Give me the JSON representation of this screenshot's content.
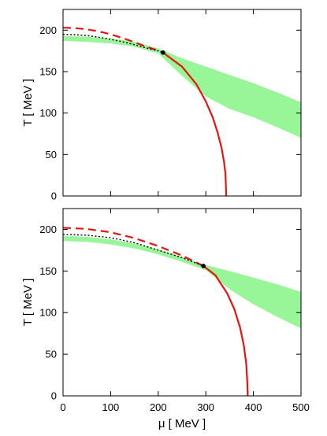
{
  "chart_data": [
    {
      "type": "line",
      "panel": "top",
      "title": "",
      "xlabel": "",
      "ylabel": "T  [ MeV ]",
      "xlim": [
        0,
        500
      ],
      "ylim": [
        0,
        225
      ],
      "xticks": [],
      "yticks": [
        "0",
        "50",
        "100",
        "150",
        "200"
      ],
      "grid": false,
      "legend": "none",
      "colors": {
        "curve": "#e8140f",
        "band": "#98f598",
        "dotted": "#000000",
        "point": "#000000"
      },
      "critical_point": {
        "x": 210,
        "y": 173
      },
      "series": [
        {
          "style": "dashed",
          "x": [
            0,
            25,
            50,
            75,
            100,
            125,
            150,
            175,
            200,
            210
          ],
          "y": [
            203,
            202.5,
            201,
            198.5,
            195,
            190.5,
            185.5,
            180,
            175.5,
            173
          ]
        },
        {
          "style": "solid",
          "x": [
            210,
            250,
            280,
            300,
            315,
            325,
            333,
            338,
            341,
            342,
            343
          ],
          "y": [
            173,
            156,
            135,
            114,
            94,
            76,
            58,
            42,
            28,
            15,
            0
          ]
        },
        {
          "style": "dotted",
          "x": [
            0,
            25,
            50,
            75,
            100,
            125,
            150,
            175,
            200,
            210
          ],
          "y": [
            195,
            194.5,
            193.5,
            191.5,
            189,
            186,
            182.5,
            178.5,
            175,
            173
          ]
        },
        {
          "style": "band",
          "x": [
            0,
            50,
            100,
            150,
            200,
            250,
            300,
            350,
            400,
            450,
            500
          ],
          "y_upper": [
            193,
            192,
            190,
            186,
            178,
            166,
            156,
            146,
            136,
            125,
            113
          ],
          "y_lower": [
            187,
            186,
            184,
            180,
            172,
            145,
            120,
            105,
            95,
            83,
            70
          ]
        }
      ]
    },
    {
      "type": "line",
      "panel": "bottom",
      "title": "",
      "xlabel": "μ  [ MeV ]",
      "ylabel": "T  [ MeV ]",
      "xlim": [
        0,
        500
      ],
      "ylim": [
        0,
        225
      ],
      "xticks": [
        "0",
        "100",
        "200",
        "300",
        "400",
        "500"
      ],
      "yticks": [
        "0",
        "50",
        "100",
        "150",
        "200"
      ],
      "grid": false,
      "legend": "none",
      "colors": {
        "curve": "#e8140f",
        "band": "#98f598",
        "dotted": "#000000",
        "point": "#000000"
      },
      "critical_point": {
        "x": 295,
        "y": 156
      },
      "series": [
        {
          "style": "dashed",
          "x": [
            0,
            50,
            100,
            150,
            200,
            250,
            295
          ],
          "y": [
            202,
            200.5,
            196.5,
            189.5,
            180,
            168.5,
            156
          ]
        },
        {
          "style": "solid",
          "x": [
            295,
            320,
            345,
            360,
            372,
            380,
            385,
            387,
            388
          ],
          "y": [
            156,
            145,
            123,
            104,
            82,
            60,
            38,
            18,
            0
          ]
        },
        {
          "style": "dotted",
          "x": [
            0,
            50,
            100,
            150,
            200,
            250,
            295
          ],
          "y": [
            194,
            193,
            190,
            184,
            175,
            166,
            156
          ]
        },
        {
          "style": "band",
          "x": [
            0,
            50,
            100,
            150,
            200,
            250,
            300,
            350,
            400,
            450,
            500
          ],
          "y_upper": [
            192,
            191,
            188,
            183,
            176,
            167,
            157,
            150,
            142,
            134,
            125
          ],
          "y_lower": [
            186,
            185,
            182,
            177,
            170,
            161,
            151,
            128,
            110,
            95,
            81
          ]
        }
      ]
    }
  ]
}
